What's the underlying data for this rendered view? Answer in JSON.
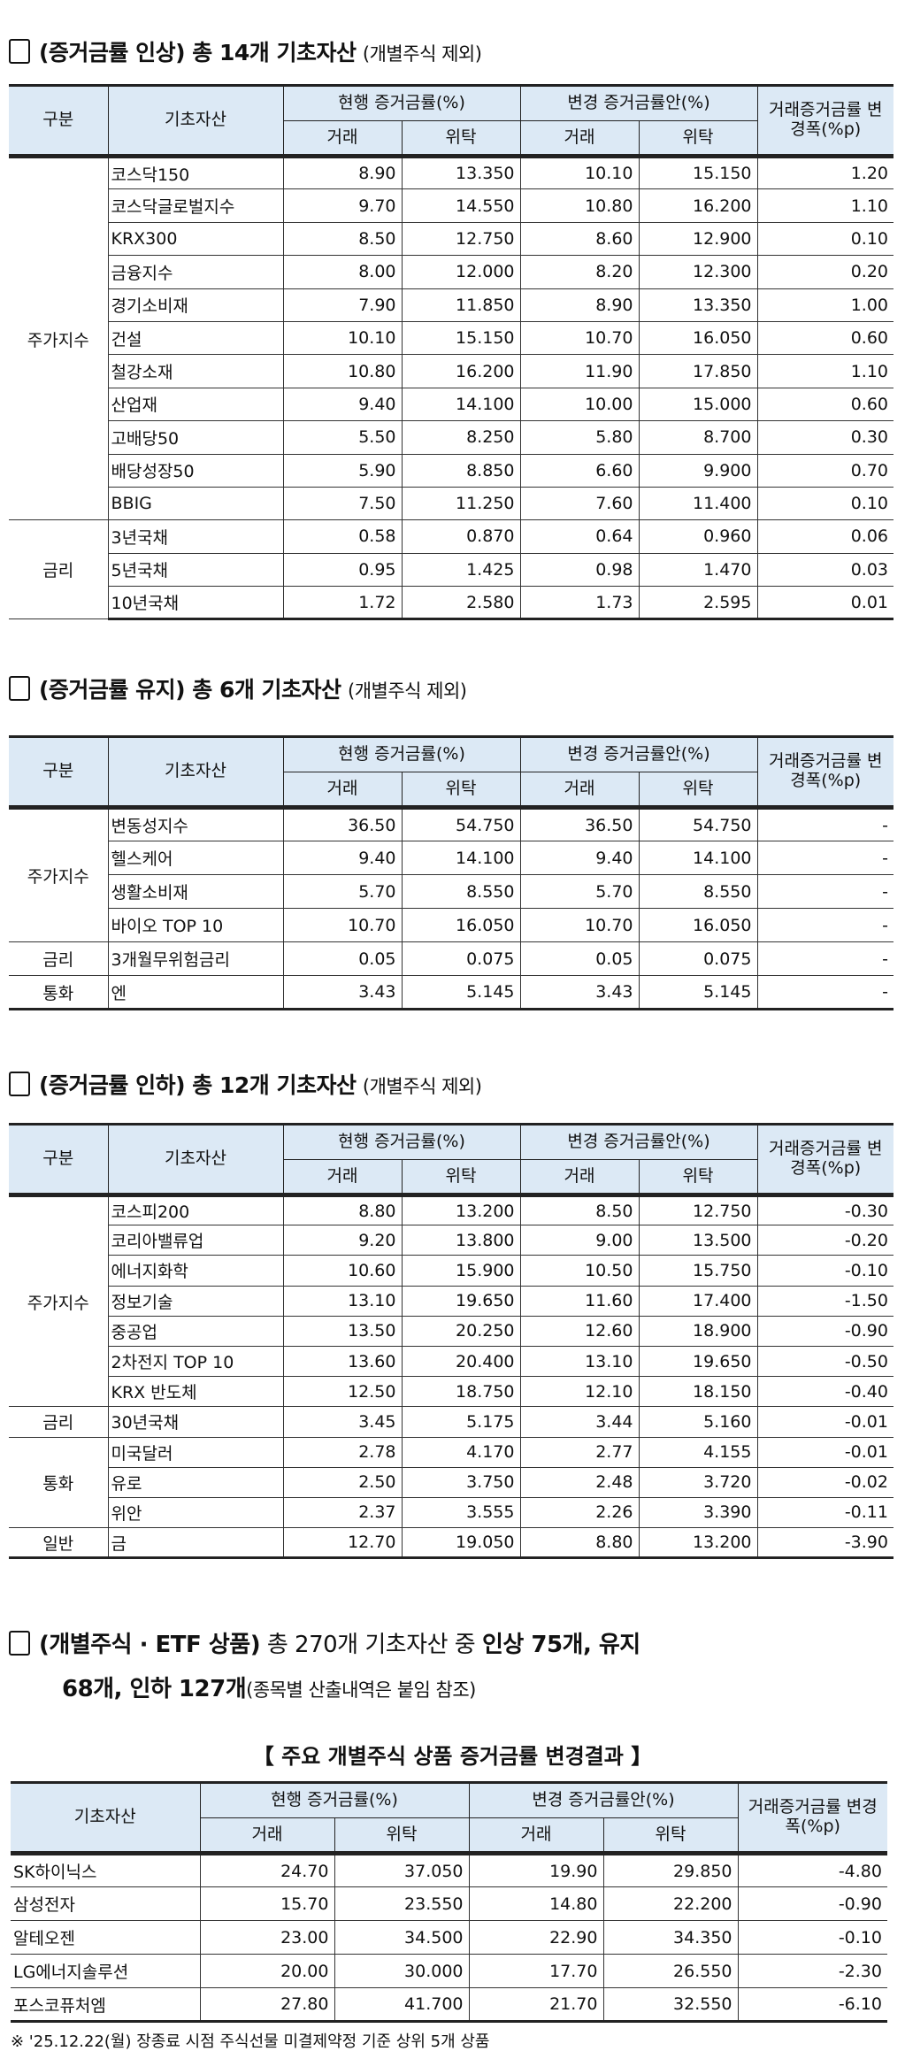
{
  "headers": {
    "group": "구분",
    "asset": "기초자산",
    "current": "현행 증거금률(%)",
    "proposed": "변경 증거금률안(%)",
    "trade": "거래",
    "consign": "위탁",
    "change": "거래증거금률 변경폭(%p)"
  },
  "sections": [
    {
      "title_bold": "(증거금률 인상) 총 14개 기초자산",
      "title_sub": "(개별주식 제외)",
      "groups": [
        {
          "name": "주가지수",
          "rows": [
            [
              "코스닥150",
              "8.90",
              "13.350",
              "10.10",
              "15.150",
              "1.20"
            ],
            [
              "코스닥글로벌지수",
              "9.70",
              "14.550",
              "10.80",
              "16.200",
              "1.10"
            ],
            [
              "KRX300",
              "8.50",
              "12.750",
              "8.60",
              "12.900",
              "0.10"
            ],
            [
              "금융지수",
              "8.00",
              "12.000",
              "8.20",
              "12.300",
              "0.20"
            ],
            [
              "경기소비재",
              "7.90",
              "11.850",
              "8.90",
              "13.350",
              "1.00"
            ],
            [
              "건설",
              "10.10",
              "15.150",
              "10.70",
              "16.050",
              "0.60"
            ],
            [
              "철강소재",
              "10.80",
              "16.200",
              "11.90",
              "17.850",
              "1.10"
            ],
            [
              "산업재",
              "9.40",
              "14.100",
              "10.00",
              "15.000",
              "0.60"
            ],
            [
              "고배당50",
              "5.50",
              "8.250",
              "5.80",
              "8.700",
              "0.30"
            ],
            [
              "배당성장50",
              "5.90",
              "8.850",
              "6.60",
              "9.900",
              "0.70"
            ],
            [
              "BBIG",
              "7.50",
              "11.250",
              "7.60",
              "11.400",
              "0.10"
            ]
          ]
        },
        {
          "name": "금리",
          "rows": [
            [
              "3년국채",
              "0.58",
              "0.870",
              "0.64",
              "0.960",
              "0.06"
            ],
            [
              "5년국채",
              "0.95",
              "1.425",
              "0.98",
              "1.470",
              "0.03"
            ],
            [
              "10년국채",
              "1.72",
              "2.580",
              "1.73",
              "2.595",
              "0.01"
            ]
          ]
        }
      ]
    },
    {
      "title_bold": "(증거금률 유지) 총 6개 기초자산",
      "title_sub": "(개별주식 제외)",
      "groups": [
        {
          "name": "주가지수",
          "rows": [
            [
              "변동성지수",
              "36.50",
              "54.750",
              "36.50",
              "54.750",
              "-"
            ],
            [
              "헬스케어",
              "9.40",
              "14.100",
              "9.40",
              "14.100",
              "-"
            ],
            [
              "생활소비재",
              "5.70",
              "8.550",
              "5.70",
              "8.550",
              "-"
            ],
            [
              "바이오 TOP 10",
              "10.70",
              "16.050",
              "10.70",
              "16.050",
              "-"
            ]
          ]
        },
        {
          "name": "금리",
          "rows": [
            [
              "3개월무위험금리",
              "0.05",
              "0.075",
              "0.05",
              "0.075",
              "-"
            ]
          ]
        },
        {
          "name": "통화",
          "rows": [
            [
              "엔",
              "3.43",
              "5.145",
              "3.43",
              "5.145",
              "-"
            ]
          ]
        }
      ]
    },
    {
      "title_bold": "(증거금률 인하) 총 12개 기초자산",
      "title_sub": "(개별주식 제외)",
      "groups": [
        {
          "name": "주가지수",
          "rows": [
            [
              "코스피200",
              "8.80",
              "13.200",
              "8.50",
              "12.750",
              "-0.30"
            ],
            [
              "코리아밸류업",
              "9.20",
              "13.800",
              "9.00",
              "13.500",
              "-0.20"
            ],
            [
              "에너지화학",
              "10.60",
              "15.900",
              "10.50",
              "15.750",
              "-0.10"
            ],
            [
              "정보기술",
              "13.10",
              "19.650",
              "11.60",
              "17.400",
              "-1.50"
            ],
            [
              "중공업",
              "13.50",
              "20.250",
              "12.60",
              "18.900",
              "-0.90"
            ],
            [
              "2차전지 TOP 10",
              "13.60",
              "20.400",
              "13.10",
              "19.650",
              "-0.50"
            ],
            [
              "KRX 반도체",
              "12.50",
              "18.750",
              "12.10",
              "18.150",
              "-0.40"
            ]
          ]
        },
        {
          "name": "금리",
          "rows": [
            [
              "30년국채",
              "3.45",
              "5.175",
              "3.44",
              "5.160",
              "-0.01"
            ]
          ]
        },
        {
          "name": "통화",
          "rows": [
            [
              "미국달러",
              "2.78",
              "4.170",
              "2.77",
              "4.155",
              "-0.01"
            ],
            [
              "유로",
              "2.50",
              "3.750",
              "2.48",
              "3.720",
              "-0.02"
            ],
            [
              "위안",
              "2.37",
              "3.555",
              "2.26",
              "3.390",
              "-0.11"
            ]
          ]
        },
        {
          "name": "일반",
          "rows": [
            [
              "금",
              "12.70",
              "19.050",
              "8.80",
              "13.200",
              "-3.90"
            ]
          ]
        }
      ]
    }
  ],
  "stocks": {
    "title_bold_1": "(개별주식 · ETF 상품)",
    "title_mid": " 총 270개 기초자산 중 ",
    "title_bold_2": "인상 75개, 유지",
    "line2_bold": "68개, 인하 127개",
    "line2_sub": "(종목별 산출내역은 붙임 참조)",
    "caption": "【 주요 개별주식 상품 증거금률 변경결과 】",
    "rows": [
      [
        "SK하이닉스",
        "24.70",
        "37.050",
        "19.90",
        "29.850",
        "-4.80"
      ],
      [
        "삼성전자",
        "15.70",
        "23.550",
        "14.80",
        "22.200",
        "-0.90"
      ],
      [
        "알테오젠",
        "23.00",
        "34.500",
        "22.90",
        "34.350",
        "-0.10"
      ],
      [
        "LG에너지솔루션",
        "20.00",
        "30.000",
        "17.70",
        "26.550",
        "-2.30"
      ],
      [
        "포스코퓨처엠",
        "27.80",
        "41.700",
        "21.70",
        "32.550",
        "-6.10"
      ]
    ],
    "footnote": "※ '25.12.22(월) 장종료 시점 주식선물 미결제약정 기준 상위 5개 상품"
  },
  "colors": {
    "header_bg": "#dce9f5",
    "border": "#222222"
  }
}
